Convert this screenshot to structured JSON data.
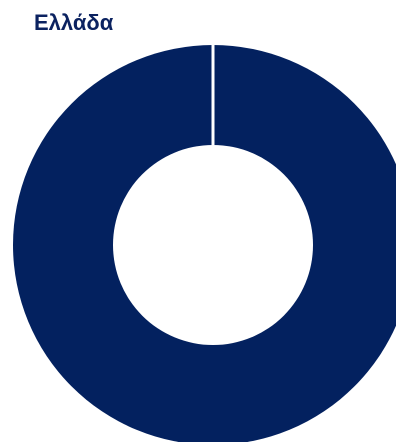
{
  "chart_data": {
    "type": "pie",
    "title": "Ελλάδα",
    "slices": [
      {
        "label": "",
        "value": 100,
        "color": "#03215f"
      }
    ]
  }
}
